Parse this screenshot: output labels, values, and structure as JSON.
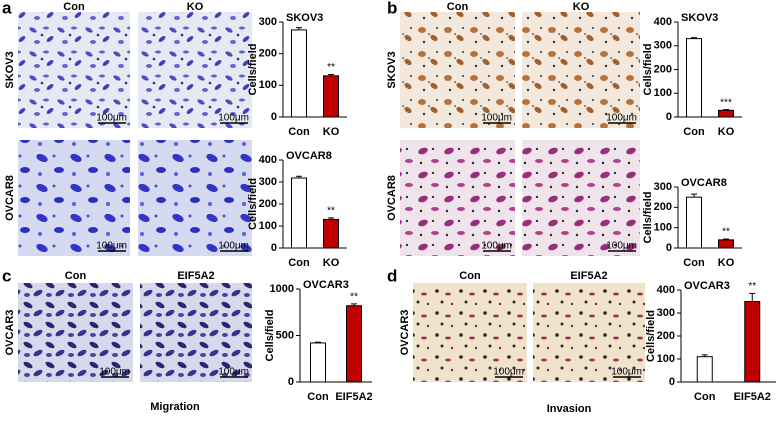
{
  "figure": {
    "panels": [
      {
        "letter": "a",
        "columns": [
          "Con",
          "KO"
        ],
        "rows": [
          "SKOV3",
          "OVCAR8"
        ],
        "scale_bar": "100μm"
      },
      {
        "letter": "b",
        "columns": [
          "Con",
          "KO"
        ],
        "rows": [
          "SKOV3",
          "OVCAR8"
        ],
        "scale_bar": "100μm"
      },
      {
        "letter": "c",
        "columns": [
          "Con",
          "EIF5A2"
        ],
        "rows": [
          "OVCAR3"
        ],
        "scale_bar": "100μm",
        "footer": "Migration"
      },
      {
        "letter": "d",
        "columns": [
          "Con",
          "EIF5A2"
        ],
        "rows": [
          "OVCAR3"
        ],
        "scale_bar": "100μm",
        "footer": "Invasion"
      }
    ]
  },
  "chart_data": [
    {
      "type": "bar",
      "title": "SKOV3",
      "ylabel": "Cells/field",
      "categories": [
        "Con",
        "KO"
      ],
      "values": [
        275,
        130
      ],
      "errors": [
        7,
        4
      ],
      "colors": [
        "#ffffff",
        "#c00000"
      ],
      "significance": [
        null,
        "**"
      ],
      "ylim": [
        0,
        300
      ],
      "yticks": [
        0,
        100,
        200,
        300
      ]
    },
    {
      "type": "bar",
      "title": "OVCAR8",
      "ylabel": "Cells/field",
      "categories": [
        "Con",
        "KO"
      ],
      "values": [
        318,
        130
      ],
      "errors": [
        8,
        7
      ],
      "colors": [
        "#ffffff",
        "#c00000"
      ],
      "significance": [
        null,
        "**"
      ],
      "ylim": [
        0,
        400
      ],
      "yticks": [
        0,
        100,
        200,
        300,
        400
      ]
    },
    {
      "type": "bar",
      "title": "SKOV3",
      "ylabel": "Cells/field",
      "categories": [
        "Con",
        "KO"
      ],
      "values": [
        330,
        28
      ],
      "errors": [
        4,
        3
      ],
      "colors": [
        "#ffffff",
        "#c00000"
      ],
      "significance": [
        null,
        "***"
      ],
      "ylim": [
        0,
        400
      ],
      "yticks": [
        0,
        100,
        200,
        300,
        400
      ]
    },
    {
      "type": "bar",
      "title": "OVCAR8",
      "ylabel": "Cells/field",
      "categories": [
        "Con",
        "KO"
      ],
      "values": [
        250,
        40
      ],
      "errors": [
        15,
        4
      ],
      "colors": [
        "#ffffff",
        "#c00000"
      ],
      "significance": [
        null,
        "**"
      ],
      "ylim": [
        0,
        300
      ],
      "yticks": [
        0,
        100,
        200,
        300
      ]
    },
    {
      "type": "bar",
      "title": "OVCAR3",
      "ylabel": "Cells/field",
      "categories": [
        "Con",
        "EIF5A2"
      ],
      "values": [
        420,
        820
      ],
      "errors": [
        8,
        20
      ],
      "colors": [
        "#ffffff",
        "#c00000"
      ],
      "significance": [
        null,
        "**"
      ],
      "ylim": [
        0,
        1000
      ],
      "yticks": [
        0,
        500,
        1000
      ]
    },
    {
      "type": "bar",
      "title": "OVCAR3",
      "ylabel": "Cells/field",
      "categories": [
        "Con",
        "EIF5A2"
      ],
      "values": [
        110,
        350
      ],
      "errors": [
        8,
        35
      ],
      "colors": [
        "#ffffff",
        "#c00000"
      ],
      "significance": [
        null,
        "**"
      ],
      "ylim": [
        0,
        400
      ],
      "yticks": [
        0,
        100,
        200,
        300,
        400
      ]
    }
  ]
}
